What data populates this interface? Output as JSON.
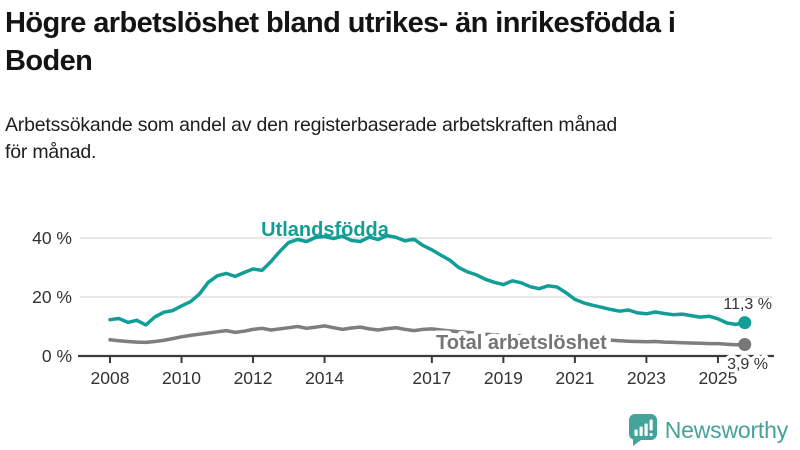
{
  "header": {
    "title": "Högre arbetslöshet bland utrikes- än inrikesfödda i Boden",
    "title_line1": "Högre arbetslöshet bland utrikes- än inrikesfödda i",
    "title_line2": "Boden",
    "subtitle": "Arbetssökande som andel av den registerbaserade arbetskraften månad för månad.",
    "subtitle_line1": "Arbetssökande som andel av den registerbaserade arbetskraften månad",
    "subtitle_line2": "för månad."
  },
  "chart_data": {
    "type": "line",
    "title": "",
    "xlabel": "",
    "ylabel": "",
    "grid": "horizontal",
    "xlim": [
      2007.1,
      2026.6
    ],
    "ylim": [
      0,
      44
    ],
    "xticks": [
      2008,
      2010,
      2012,
      2014,
      2017,
      2019,
      2021,
      2023,
      2025
    ],
    "xtick_labels": [
      "2008",
      "2010",
      "2012",
      "2014",
      "2017",
      "2019",
      "2021",
      "2023",
      "2025"
    ],
    "yticks": [
      0,
      20,
      40
    ],
    "ytick_labels": [
      "0 %",
      "20 %",
      "40 %"
    ],
    "x": [
      2008.0,
      2008.25,
      2008.5,
      2008.75,
      2009.0,
      2009.25,
      2009.5,
      2009.75,
      2010.0,
      2010.25,
      2010.5,
      2010.75,
      2011.0,
      2011.25,
      2011.5,
      2011.75,
      2012.0,
      2012.25,
      2012.5,
      2012.75,
      2013.0,
      2013.25,
      2013.5,
      2013.75,
      2014.0,
      2014.25,
      2014.5,
      2014.75,
      2015.0,
      2015.25,
      2015.5,
      2015.75,
      2016.0,
      2016.25,
      2016.5,
      2016.75,
      2017.0,
      2017.25,
      2017.5,
      2017.75,
      2018.0,
      2018.25,
      2018.5,
      2018.75,
      2019.0,
      2019.25,
      2019.5,
      2019.75,
      2020.0,
      2020.25,
      2020.5,
      2020.75,
      2021.0,
      2021.25,
      2021.5,
      2021.75,
      2022.0,
      2022.25,
      2022.5,
      2022.75,
      2023.0,
      2023.25,
      2023.5,
      2023.75,
      2024.0,
      2024.25,
      2024.5,
      2024.75,
      2025.0,
      2025.25,
      2025.5,
      2025.75
    ],
    "series": [
      {
        "name": "Utlandsfödda",
        "color": "#119e97",
        "end_label": "11,3 %",
        "last_value": 11.3,
        "values": [
          12.3,
          12.7,
          11.4,
          12.1,
          10.5,
          13.2,
          14.8,
          15.4,
          17.0,
          18.4,
          21.0,
          25.0,
          27.2,
          28.0,
          27.0,
          28.3,
          29.5,
          29.0,
          32.0,
          35.5,
          38.5,
          39.5,
          38.8,
          40.2,
          40.5,
          39.8,
          40.6,
          39.2,
          38.8,
          40.3,
          39.5,
          40.8,
          40.2,
          39.0,
          39.6,
          37.5,
          36.0,
          34.2,
          32.5,
          30.0,
          28.5,
          27.5,
          26.0,
          25.0,
          24.2,
          25.5,
          24.8,
          23.5,
          22.8,
          23.8,
          23.4,
          21.5,
          19.2,
          18.0,
          17.2,
          16.5,
          15.8,
          15.2,
          15.6,
          14.6,
          14.3,
          14.9,
          14.4,
          14.0,
          14.2,
          13.7,
          13.2,
          13.5,
          12.6,
          11.2,
          10.7,
          11.3
        ]
      },
      {
        "name": "Total arbetslöshet",
        "color": "#7e7e7e",
        "end_label": "3,9 %",
        "last_value": 3.9,
        "values": [
          5.5,
          5.2,
          4.9,
          4.7,
          4.6,
          4.9,
          5.3,
          5.9,
          6.5,
          7.0,
          7.4,
          7.8,
          8.2,
          8.6,
          8.0,
          8.4,
          9.0,
          9.4,
          8.8,
          9.2,
          9.6,
          10.0,
          9.4,
          9.8,
          10.2,
          9.6,
          9.0,
          9.5,
          9.8,
          9.2,
          8.8,
          9.3,
          9.6,
          9.0,
          8.6,
          9.0,
          9.2,
          8.8,
          8.5,
          8.2,
          8.0,
          7.7,
          7.4,
          7.2,
          7.0,
          6.8,
          6.9,
          6.7,
          6.8,
          7.2,
          7.0,
          6.6,
          6.3,
          6.0,
          5.8,
          5.6,
          5.4,
          5.2,
          5.0,
          4.9,
          4.8,
          4.9,
          4.7,
          4.6,
          4.5,
          4.4,
          4.3,
          4.2,
          4.2,
          4.0,
          3.8,
          3.9
        ]
      }
    ],
    "legend_position": "inline-labels"
  },
  "branding": {
    "name": "Newsworthy",
    "icon": "newsworthy-bars-icon",
    "icon_color": "#44a39b",
    "text_color": "#47a09a"
  },
  "colors": {
    "accent_teal": "#119e97",
    "series_gray": "#7e7e7e",
    "axis": "#3b3b3b",
    "gridline": "#dadada",
    "tick_text": "#333333"
  }
}
